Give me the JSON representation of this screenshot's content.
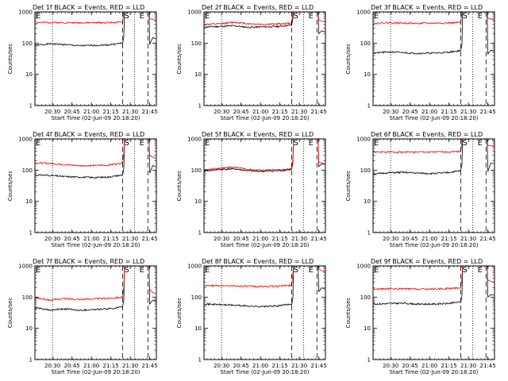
{
  "chart_data": [
    {
      "type": "line",
      "title": "Det 1f BLACK = Events, RED = LLD",
      "xlabel": "Start Time (02-Jun-09 20:18:20)",
      "ylabel": "Counts/sec",
      "ylim": [
        1,
        1000
      ],
      "x_tick_labels": [
        "20:30",
        "20:45",
        "21:00",
        "21:15",
        "21:30",
        "21:45"
      ],
      "y_tick_labels": [
        "1",
        "10",
        "100",
        "1000"
      ],
      "markers": [
        "S",
        "E"
      ],
      "series": [
        {
          "color": "#000000",
          "values": [
            85,
            95,
            90,
            82,
            85,
            88,
            100
          ],
          "after": [
            90,
            150,
            140
          ]
        },
        {
          "color": "#ff0000",
          "values": [
            450,
            460,
            455,
            450,
            452,
            455,
            470
          ],
          "after": [
            600,
            580,
            520
          ]
        }
      ]
    },
    {
      "type": "line",
      "title": "Det 2f BLACK = Events, RED = LLD",
      "xlabel": "Start Time (02-Jun-09 20:18:20)",
      "ylabel": "Counts/sec",
      "ylim": [
        1,
        1000
      ],
      "x_tick_labels": [
        "20:30",
        "20:45",
        "21:00",
        "21:15",
        "21:30",
        "21:45"
      ],
      "y_tick_labels": [
        "1",
        "10",
        "100",
        "1000"
      ],
      "markers": [
        "S",
        "E"
      ],
      "series": [
        {
          "color": "#000000",
          "values": [
            330,
            340,
            360,
            320,
            330,
            340,
            380
          ],
          "after": [
            200,
            250,
            230
          ]
        },
        {
          "color": "#ff0000",
          "values": [
            400,
            410,
            470,
            420,
            400,
            410,
            440
          ],
          "after": [
            560,
            500,
            480
          ]
        }
      ]
    },
    {
      "type": "line",
      "title": "Det 3f BLACK = Events, RED = LLD",
      "xlabel": "Start Time (02-Jun-09 20:18:20)",
      "ylabel": "Counts/sec",
      "ylim": [
        1,
        1000
      ],
      "x_tick_labels": [
        "20:30",
        "20:45",
        "21:00",
        "21:15",
        "21:30",
        "21:45"
      ],
      "y_tick_labels": [
        "1",
        "10",
        "100",
        "1000"
      ],
      "markers": [
        "S",
        "E"
      ],
      "series": [
        {
          "color": "#000000",
          "values": [
            48,
            52,
            50,
            47,
            48,
            50,
            58
          ],
          "after": [
            45,
            60,
            55
          ]
        },
        {
          "color": "#ff0000",
          "values": [
            430,
            450,
            440,
            430,
            435,
            440,
            460
          ],
          "after": [
            620,
            600,
            550
          ]
        }
      ]
    },
    {
      "type": "line",
      "title": "Det 4f BLACK = Events, RED = LLD",
      "xlabel": "Start Time (02-Jun-09 20:18:20)",
      "ylabel": "Counts/sec",
      "ylim": [
        1,
        1000
      ],
      "x_tick_labels": [
        "20:30",
        "20:45",
        "21:00",
        "21:15",
        "21:30",
        "21:45"
      ],
      "y_tick_labels": [
        "1",
        "10",
        "100",
        "1000"
      ],
      "markers": [
        "S",
        "E"
      ],
      "series": [
        {
          "color": "#000000",
          "values": [
            70,
            68,
            62,
            60,
            58,
            60,
            70
          ],
          "after": [
            80,
            140,
            130
          ]
        },
        {
          "color": "#ff0000",
          "values": [
            170,
            165,
            150,
            140,
            140,
            145,
            170
          ],
          "after": [
            300,
            260,
            240
          ]
        }
      ]
    },
    {
      "type": "line",
      "title": "Det 5f BLACK = Events, RED = LLD",
      "xlabel": "Start Time (02-Jun-09 20:18:20)",
      "ylabel": "Counts/sec",
      "ylim": [
        1,
        1000
      ],
      "x_tick_labels": [
        "20:30",
        "20:45",
        "21:00",
        "21:15",
        "21:30",
        "21:45"
      ],
      "y_tick_labels": [
        "1",
        "10",
        "100",
        "1000"
      ],
      "markers": [
        "S",
        "E"
      ],
      "series": [
        {
          "color": "#000000",
          "values": [
            95,
            105,
            110,
            95,
            92,
            95,
            105
          ],
          "after": [
            130,
            160,
            150
          ]
        },
        {
          "color": "#ff0000",
          "values": [
            100,
            115,
            125,
            105,
            100,
            102,
            110
          ],
          "after": [
            180,
            170,
            160
          ]
        }
      ]
    },
    {
      "type": "line",
      "title": "Det 6f BLACK = Events, RED = LLD",
      "xlabel": "Start Time (02-Jun-09 20:18:20)",
      "ylabel": "Counts/sec",
      "ylim": [
        1,
        1000
      ],
      "x_tick_labels": [
        "20:30",
        "20:45",
        "21:00",
        "21:15",
        "21:30",
        "21:45"
      ],
      "y_tick_labels": [
        "1",
        "10",
        "100",
        "1000"
      ],
      "markers": [
        "S",
        "E"
      ],
      "series": [
        {
          "color": "#000000",
          "values": [
            75,
            82,
            85,
            80,
            78,
            82,
            95
          ],
          "after": [
            90,
            170,
            160
          ]
        },
        {
          "color": "#ff0000",
          "values": [
            380,
            380,
            382,
            380,
            380,
            385,
            400
          ],
          "after": [
            620,
            600,
            560
          ]
        }
      ]
    },
    {
      "type": "line",
      "title": "Det 7f BLACK = Events, RED = LLD",
      "xlabel": "Start Time (02-Jun-09 20:18:20)",
      "ylabel": "Counts/sec",
      "ylim": [
        1,
        1000
      ],
      "x_tick_labels": [
        "20:30",
        "20:45",
        "21:00",
        "21:15",
        "21:30",
        "21:45"
      ],
      "y_tick_labels": [
        "1",
        "10",
        "100",
        "1000"
      ],
      "markers": [
        "S",
        "E"
      ],
      "series": [
        {
          "color": "#000000",
          "values": [
            45,
            38,
            42,
            38,
            40,
            42,
            48
          ],
          "after": [
            60,
            80,
            75
          ]
        },
        {
          "color": "#ff0000",
          "values": [
            95,
            80,
            90,
            85,
            88,
            92,
            100
          ],
          "after": [
            180,
            140,
            130
          ]
        }
      ]
    },
    {
      "type": "line",
      "title": "Det 8f BLACK = Events, RED = LLD",
      "xlabel": "Start Time (02-Jun-09 20:18:20)",
      "ylabel": "Counts/sec",
      "ylim": [
        1,
        1000
      ],
      "x_tick_labels": [
        "20:30",
        "20:45",
        "21:00",
        "21:15",
        "21:30",
        "21:45"
      ],
      "y_tick_labels": [
        "1",
        "10",
        "100",
        "1000"
      ],
      "markers": [
        "S",
        "E"
      ],
      "series": [
        {
          "color": "#000000",
          "values": [
            60,
            58,
            55,
            52,
            50,
            52,
            60
          ],
          "after": [
            150,
            200,
            180
          ]
        },
        {
          "color": "#ff0000",
          "values": [
            230,
            235,
            230,
            222,
            220,
            225,
            240
          ],
          "after": [
            800,
            700,
            650
          ]
        }
      ]
    },
    {
      "type": "line",
      "title": "Det 9f BLACK = Events, RED = LLD",
      "xlabel": "Start Time (02-Jun-09 20:18:20)",
      "ylabel": "Counts/sec",
      "ylim": [
        1,
        1000
      ],
      "x_tick_labels": [
        "20:30",
        "20:45",
        "21:00",
        "21:15",
        "21:30",
        "21:45"
      ],
      "y_tick_labels": [
        "1",
        "10",
        "100",
        "1000"
      ],
      "markers": [
        "S",
        "E"
      ],
      "series": [
        {
          "color": "#000000",
          "values": [
            60,
            62,
            64,
            60,
            60,
            62,
            70
          ],
          "after": [
            100,
            120,
            115
          ]
        },
        {
          "color": "#ff0000",
          "values": [
            180,
            185,
            185,
            180,
            182,
            188,
            200
          ],
          "after": [
            350,
            320,
            300
          ]
        }
      ]
    }
  ]
}
